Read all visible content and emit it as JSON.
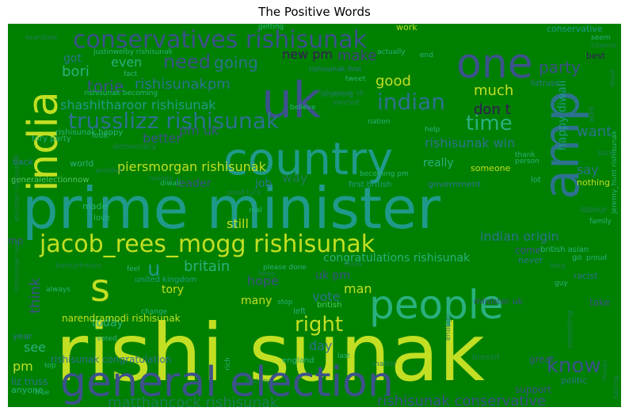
{
  "chart_data": {
    "type": "wordcloud",
    "title": "The Positive Words",
    "background": "#008000",
    "palette": {
      "y": "#c2df23",
      "g": "#2ab07f",
      "t": "#1f9a8a",
      "b": "#2c728e",
      "n": "#3b528b",
      "p": "#433e85",
      "v": "#482878",
      "d": "#35185a",
      "l": "#7ad151",
      "m": "#52c569",
      "f": "#1e7b57"
    },
    "words": [
      {
        "text": "rishi sunak",
        "size": 100,
        "color": "y"
      },
      {
        "text": "prime minister",
        "size": 72,
        "color": "t"
      },
      {
        "text": "general election",
        "size": 52,
        "color": "n"
      },
      {
        "text": "country",
        "size": 56,
        "color": "t"
      },
      {
        "text": "people",
        "size": 50,
        "color": "g"
      },
      {
        "text": "india",
        "size": 52,
        "color": "y"
      },
      {
        "text": "amp",
        "size": 62,
        "color": "b"
      },
      {
        "text": "uk",
        "size": 62,
        "color": "n"
      },
      {
        "text": "one",
        "size": 52,
        "color": "n"
      },
      {
        "text": "s",
        "size": 48,
        "color": "y"
      },
      {
        "text": "jacob_rees_mogg rishisunak",
        "size": 30,
        "color": "y"
      },
      {
        "text": "conservatives rishisunak",
        "size": 30,
        "color": "n"
      },
      {
        "text": "trusslizz rishisunak",
        "size": 28,
        "color": "b"
      },
      {
        "text": "indian",
        "size": 28,
        "color": "b"
      },
      {
        "text": "time",
        "size": 26,
        "color": "g"
      },
      {
        "text": "right",
        "size": 26,
        "color": "y"
      },
      {
        "text": "know",
        "size": 26,
        "color": "n"
      },
      {
        "text": "u",
        "size": 26,
        "color": "t"
      },
      {
        "text": "rishisunak conservative",
        "size": 18,
        "color": "n"
      },
      {
        "text": "matthancock rishisunak",
        "size": 18,
        "color": "f"
      },
      {
        "text": "need",
        "size": 24,
        "color": "n"
      },
      {
        "text": "going",
        "size": 20,
        "color": "b"
      },
      {
        "text": "make",
        "size": 18,
        "color": "p"
      },
      {
        "text": "torie",
        "size": 20,
        "color": "n"
      },
      {
        "text": "rishisunakpm",
        "size": 18,
        "color": "b"
      },
      {
        "text": "party",
        "size": 20,
        "color": "n"
      },
      {
        "text": "happy diwali",
        "size": 14,
        "color": "t"
      },
      {
        "text": "want",
        "size": 18,
        "color": "b"
      },
      {
        "text": "don t",
        "size": 18,
        "color": "d"
      },
      {
        "text": "much",
        "size": 18,
        "color": "y"
      },
      {
        "text": "good",
        "size": 18,
        "color": "y"
      },
      {
        "text": "even",
        "size": 16,
        "color": "g"
      },
      {
        "text": "bori",
        "size": 18,
        "color": "g"
      },
      {
        "text": "got",
        "size": 14,
        "color": "b"
      },
      {
        "text": "new pm",
        "size": 16,
        "color": "d"
      },
      {
        "text": "shashitharoor rishisunak",
        "size": 16,
        "color": "t"
      },
      {
        "text": "rishisunak win",
        "size": 16,
        "color": "b"
      },
      {
        "text": "better",
        "size": 16,
        "color": "n"
      },
      {
        "text": "piersmorgan rishisunak",
        "size": 16,
        "color": "y"
      },
      {
        "text": "pm uk",
        "size": 16,
        "color": "n"
      },
      {
        "text": "leader",
        "size": 14,
        "color": "n"
      },
      {
        "text": "think",
        "size": 18,
        "color": "n"
      },
      {
        "text": "really",
        "size": 14,
        "color": "g"
      },
      {
        "text": "say",
        "size": 16,
        "color": "b"
      },
      {
        "text": "way",
        "size": 16,
        "color": "f"
      },
      {
        "text": "job",
        "size": 14,
        "color": "b"
      },
      {
        "text": "still",
        "size": 16,
        "color": "y"
      },
      {
        "text": "indian origin",
        "size": 16,
        "color": "b"
      },
      {
        "text": "britain",
        "size": 18,
        "color": "g"
      },
      {
        "text": "hope",
        "size": 16,
        "color": "n"
      },
      {
        "text": "man",
        "size": 16,
        "color": "y"
      },
      {
        "text": "vote",
        "size": 16,
        "color": "b"
      },
      {
        "text": "uk pm",
        "size": 14,
        "color": "n"
      },
      {
        "text": "congratulations rishisunak",
        "size": 14,
        "color": "g"
      },
      {
        "text": "tory",
        "size": 14,
        "color": "y"
      },
      {
        "text": "many",
        "size": 14,
        "color": "y"
      },
      {
        "text": "today",
        "size": 14,
        "color": "g"
      },
      {
        "text": "see",
        "size": 16,
        "color": "g"
      },
      {
        "text": "day",
        "size": 16,
        "color": "b"
      },
      {
        "text": "pm",
        "size": 16,
        "color": "y"
      },
      {
        "text": "narendramodi rishisunak",
        "size": 12,
        "color": "y"
      },
      {
        "text": "rishisunak congratulation",
        "size": 12,
        "color": "b"
      },
      {
        "text": "liz truss",
        "size": 12,
        "color": "b"
      },
      {
        "text": "anyone",
        "size": 11,
        "color": "g"
      },
      {
        "text": "great",
        "size": 12,
        "color": "n"
      },
      {
        "text": "support",
        "size": 12,
        "color": "n"
      },
      {
        "text": "politic",
        "size": 11,
        "color": "b"
      },
      {
        "text": "minister uk",
        "size": 11,
        "color": "n"
      },
      {
        "text": "take",
        "size": 12,
        "color": "n"
      },
      {
        "text": "racist",
        "size": 11,
        "color": "b"
      },
      {
        "text": "come",
        "size": 12,
        "color": "n"
      },
      {
        "text": "never",
        "size": 11,
        "color": "b"
      },
      {
        "text": "nothing",
        "size": 11,
        "color": "y"
      },
      {
        "text": "labour",
        "size": 11,
        "color": "f"
      },
      {
        "text": "government",
        "size": 11,
        "color": "b"
      },
      {
        "text": "someone",
        "size": 11,
        "color": "y"
      },
      {
        "text": "world",
        "size": 11,
        "color": "g"
      },
      {
        "text": "back",
        "size": 11,
        "color": "b"
      },
      {
        "text": "made",
        "size": 11,
        "color": "g"
      },
      {
        "text": "love",
        "size": 10,
        "color": "g"
      },
      {
        "text": "england",
        "size": 10,
        "color": "g"
      },
      {
        "text": "british",
        "size": 10,
        "color": "m"
      },
      {
        "text": "mp",
        "size": 12,
        "color": "n"
      },
      {
        "text": "year",
        "size": 11,
        "color": "b"
      },
      {
        "text": "work",
        "size": 11,
        "color": "y"
      },
      {
        "text": "conservative",
        "size": 11,
        "color": "t"
      },
      {
        "text": "best",
        "size": 11,
        "color": "d"
      },
      {
        "text": "liztruss",
        "size": 10,
        "color": "b"
      },
      {
        "text": "british asian",
        "size": 10,
        "color": "g"
      },
      {
        "text": "tory party",
        "size": 10,
        "color": "g"
      },
      {
        "text": "first british",
        "size": 10,
        "color": "t"
      },
      {
        "text": "generalelectionnow",
        "size": 10,
        "color": "m"
      },
      {
        "text": "rishisunak happy",
        "size": 10,
        "color": "g"
      },
      {
        "text": "rishisunak becoming",
        "size": 9,
        "color": "g"
      },
      {
        "text": "justinwelby rishisunak",
        "size": 9,
        "color": "g"
      },
      {
        "text": "rishisunak first",
        "size": 9,
        "color": "b"
      },
      {
        "text": "diwali",
        "size": 9,
        "color": "g"
      },
      {
        "text": "money",
        "size": 9,
        "color": "f"
      },
      {
        "text": "good luck",
        "size": 9,
        "color": "f"
      },
      {
        "text": "real",
        "size": 9,
        "color": "g"
      },
      {
        "text": "please done",
        "size": 9,
        "color": "g"
      },
      {
        "text": "left",
        "size": 10,
        "color": "g"
      },
      {
        "text": "stop",
        "size": 9,
        "color": "g"
      },
      {
        "text": "change",
        "size": 9,
        "color": "g"
      },
      {
        "text": "voted",
        "size": 9,
        "color": "g"
      },
      {
        "text": "rich",
        "size": 9,
        "color": "g"
      },
      {
        "text": "history",
        "size": 9,
        "color": "f"
      },
      {
        "text": "always",
        "size": 9,
        "color": "g"
      },
      {
        "text": "borisjohnson",
        "size": 9,
        "color": "f"
      },
      {
        "text": "true",
        "size": 9,
        "color": "g"
      },
      {
        "text": "top",
        "size": 9,
        "color": "g"
      },
      {
        "text": "last",
        "size": 9,
        "color": "g"
      },
      {
        "text": "matter",
        "size": 9,
        "color": "f"
      },
      {
        "text": "look",
        "size": 10,
        "color": "g"
      },
      {
        "text": "fact",
        "size": 9,
        "color": "g"
      },
      {
        "text": "believe",
        "size": 9,
        "color": "g"
      },
      {
        "text": "help",
        "size": 9,
        "color": "g"
      },
      {
        "text": "nation",
        "size": 9,
        "color": "g"
      },
      {
        "text": "tweet",
        "size": 9,
        "color": "g"
      },
      {
        "text": "person",
        "size": 9,
        "color": "g"
      },
      {
        "text": "thank",
        "size": 9,
        "color": "g"
      },
      {
        "text": "another",
        "size": 9,
        "color": "f"
      },
      {
        "text": "lot",
        "size": 10,
        "color": "g"
      },
      {
        "text": "family",
        "size": 9,
        "color": "g"
      },
      {
        "text": "seem",
        "size": 9,
        "color": "g"
      },
      {
        "text": "chance",
        "size": 9,
        "color": "f"
      },
      {
        "text": "getting",
        "size": 9,
        "color": "g"
      },
      {
        "text": "actually",
        "size": 9,
        "color": "g"
      },
      {
        "text": "end",
        "size": 9,
        "color": "g"
      },
      {
        "text": "hindu",
        "size": 9,
        "color": "f"
      },
      {
        "text": "saying",
        "size": 9,
        "color": "f"
      },
      {
        "text": "guy",
        "size": 9,
        "color": "g"
      },
      {
        "text": "long",
        "size": 9,
        "color": "f"
      },
      {
        "text": "proud",
        "size": 9,
        "color": "g"
      },
      {
        "text": "go",
        "size": 10,
        "color": "g"
      },
      {
        "text": "well",
        "size": 10,
        "color": "f"
      },
      {
        "text": "sure",
        "size": 10,
        "color": "f"
      },
      {
        "text": "must",
        "size": 9,
        "color": "f"
      },
      {
        "text": "mandate",
        "size": 9,
        "color": "f"
      },
      {
        "text": "enough",
        "size": 9,
        "color": "f"
      },
      {
        "text": "something",
        "size": 9,
        "color": "f"
      },
      {
        "text": "keep",
        "size": 9,
        "color": "f"
      },
      {
        "text": "feel",
        "size": 9,
        "color": "g"
      },
      {
        "text": "show",
        "size": 9,
        "color": "f"
      },
      {
        "text": "elected",
        "size": 9,
        "color": "f"
      },
      {
        "text": "anything",
        "size": 9,
        "color": "f"
      },
      {
        "text": "breexit",
        "size": 10,
        "color": "f"
      },
      {
        "text": "democracy",
        "size": 10,
        "color": "f"
      },
      {
        "text": "united kingdom",
        "size": 10,
        "color": "t"
      },
      {
        "text": "becoming pm",
        "size": 9,
        "color": "g"
      },
      {
        "text": "jeremy_hunt rishisunak",
        "size": 9,
        "color": "g"
      },
      {
        "text": "rishisunak new",
        "size": 9,
        "color": "f"
      },
      {
        "text": "minister rishisunak",
        "size": 9,
        "color": "f"
      },
      {
        "text": "rishisunak uk",
        "size": 9,
        "color": "f"
      }
    ]
  }
}
